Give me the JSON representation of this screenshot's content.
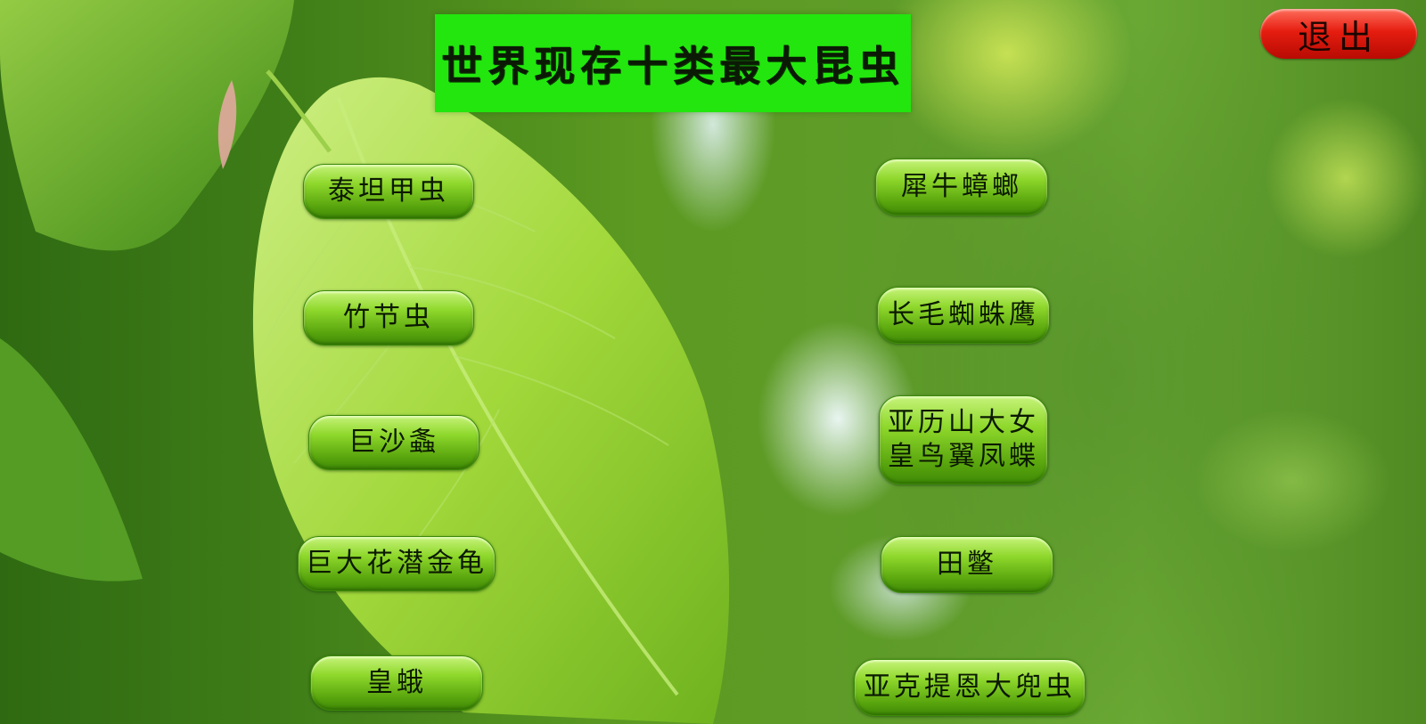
{
  "header": {
    "title": "世界现存十类最大昆虫"
  },
  "toolbar": {
    "exit_label": "退出"
  },
  "insects_left": [
    {
      "label": "泰坦甲虫"
    },
    {
      "label": "竹节虫"
    },
    {
      "label": "巨沙螽"
    },
    {
      "label": "巨大花潜金龟"
    },
    {
      "label": "皇蛾"
    }
  ],
  "insects_right": [
    {
      "label": "犀牛蟑螂"
    },
    {
      "label": "长毛蜘蛛鹰"
    },
    {
      "label": "亚历山大女\n皇鸟翼凤蝶"
    },
    {
      "label": "田鳖"
    },
    {
      "label": "亚克提恩大兜虫"
    }
  ],
  "colors": {
    "title_bg": "#22e60e",
    "exit_button": "#e51d10",
    "pill_button": "#8fd82c"
  },
  "background": {
    "icon": "green-leaves-photo"
  }
}
